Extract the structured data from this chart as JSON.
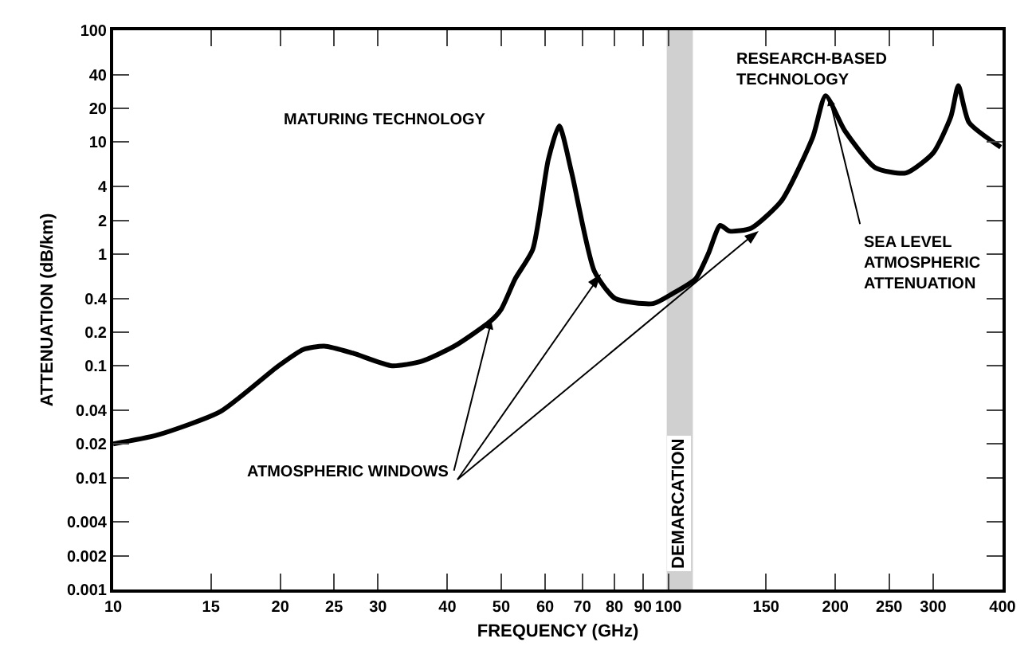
{
  "chart_data": {
    "type": "line",
    "xlabel": "FREQUENCY (GHz)",
    "ylabel": "ATTENUATION (dB/km)",
    "log": "xy",
    "grid": false,
    "marker": "none",
    "line_style": "solid",
    "x": [
      10,
      12,
      15.6,
      19.8,
      22,
      24,
      27,
      31.8,
      36,
      41.2,
      47.8,
      50,
      53,
      57,
      60.8,
      63.6,
      67,
      73.6,
      80.2,
      93.9,
      101.6,
      112,
      118,
      124,
      129,
      141,
      160,
      182,
      192,
      208,
      236,
      268,
      300,
      323,
      333,
      348,
      397
    ],
    "series": [
      {
        "color": "#000000",
        "values": [
          0.02,
          0.024,
          0.039,
          0.099,
          0.14,
          0.15,
          0.13,
          0.1,
          0.11,
          0.15,
          0.25,
          0.32,
          0.6,
          1.1,
          7,
          14,
          5.3,
          0.7,
          0.4,
          0.36,
          0.44,
          0.6,
          1.0,
          1.8,
          1.6,
          1.7,
          3,
          11,
          26,
          12.6,
          5.9,
          5.3,
          8,
          17,
          32,
          15,
          9
        ]
      }
    ],
    "xlim": [
      10,
      400
    ],
    "ylim": [
      0.001,
      100
    ],
    "xticks": [
      10,
      15,
      20,
      25,
      30,
      40,
      50,
      60,
      70,
      80,
      90,
      100,
      150,
      200,
      250,
      300,
      400
    ],
    "yticks": [
      0.001,
      0.002,
      0.004,
      0.01,
      0.02,
      0.04,
      0.1,
      0.2,
      0.4,
      1,
      2,
      4,
      10,
      20,
      40,
      100
    ],
    "bands": [
      {
        "axis": "x",
        "from": 100,
        "to": 110,
        "label": "DEMARCATION",
        "color": "#000000"
      }
    ],
    "annotations": [
      "MATURING TECHNOLOGY",
      "RESEARCH-BASED\nTECHNOLOGY",
      {
        "text": "SEA LEVEL\nATMOSPHERIC\nATTENUATION",
        "x": 195,
        "y": 25
      },
      {
        "text": "ATMOSPHERIC WINDOWS",
        "x": 48,
        "y": 0.25
      }
    ]
  }
}
